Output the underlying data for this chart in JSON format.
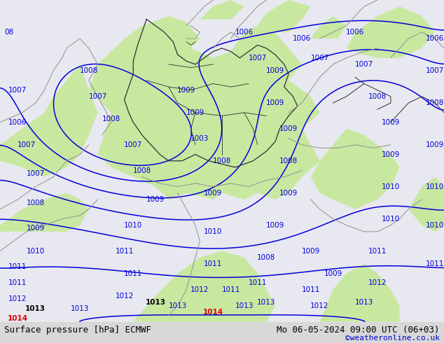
{
  "title_left": "Surface pressure [hPa] ECMWF",
  "title_right": "Mo 06-05-2024 09:00 UTC (06+03)",
  "credit": "©weatheronline.co.uk",
  "bg_color_land": "#c8e8a0",
  "bg_color_sea": "#e8e8f0",
  "border_color_dark": "#303030",
  "border_color_gray": "#909090",
  "contour_color_blue": "#0000dd",
  "contour_color_red": "#dd0000",
  "contour_color_black": "#000000",
  "label_color_blue": "#0000dd",
  "label_color_red": "#dd0000",
  "label_color_black": "#000000",
  "title_fontsize": 9,
  "credit_fontsize": 8,
  "credit_color": "#0000cc",
  "fig_width": 6.34,
  "fig_height": 4.9,
  "dpi": 100,
  "bottom_bar_color": "#d8d8d8",
  "bottom_bar_height": 0.062
}
